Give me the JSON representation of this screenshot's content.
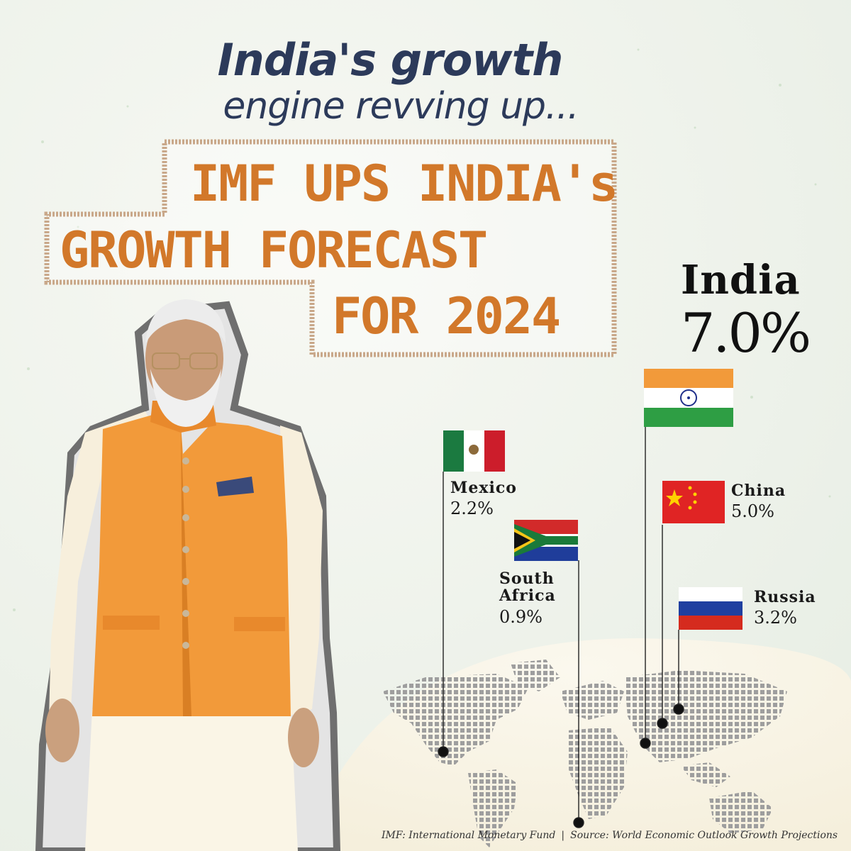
{
  "headline": {
    "line1": "India's growth",
    "line2": "engine revving up..."
  },
  "stamp": {
    "line1": "IMF UPS INDIA's",
    "line2": "GROWTH FORECAST",
    "line3": "FOR 2024"
  },
  "countries": {
    "india": {
      "name": "India",
      "value": "7.0%"
    },
    "china": {
      "name": "China",
      "value": "5.0%"
    },
    "mexico": {
      "name": "Mexico",
      "value": "2.2%"
    },
    "russia": {
      "name": "Russia",
      "value": "3.2%"
    },
    "south_africa": {
      "name_line1": "South",
      "name_line2": "Africa",
      "value": "0.9%"
    }
  },
  "footer": {
    "imf": "IMF: International Monetary Fund",
    "separator": "|",
    "source": "Source: World Economic Outlook Growth Projections"
  },
  "colors": {
    "headline": "#2c3a5a",
    "stamp_text": "#d2782a",
    "stamp_border": "#c9a88a",
    "vest": "#f29a3a",
    "map_dots": "#9b9b9b"
  }
}
